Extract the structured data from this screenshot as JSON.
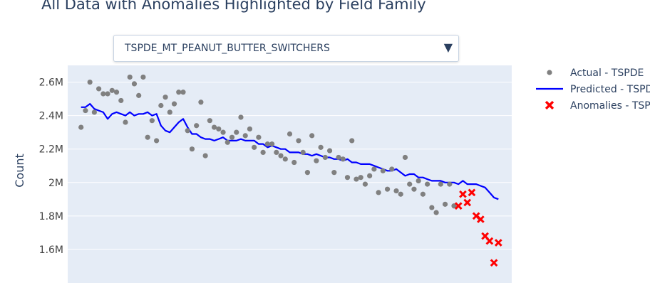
{
  "title": "All Data with Anomalies Highlighted by Field Family",
  "dropdown": {
    "selected": "TSPDE_MT_PEANUT_BUTTER_SWITCHERS",
    "arrow_icon": "triangle-down-icon"
  },
  "chart_data": {
    "type": "scatter",
    "ylabel": "Count",
    "ylim": [
      1400000,
      2700000
    ],
    "yticks": [
      {
        "value": 1600000,
        "label": "1.6M"
      },
      {
        "value": 1800000,
        "label": "1.8M"
      },
      {
        "value": 2000000,
        "label": "2M"
      },
      {
        "value": 2200000,
        "label": "2.2M"
      },
      {
        "value": 2400000,
        "label": "2.4M"
      },
      {
        "value": 2600000,
        "label": "2.6M"
      }
    ],
    "xlim": [
      -3,
      97
    ],
    "grid": true,
    "legend_position": "right",
    "series": [
      {
        "name": "Actual - TSPDE",
        "mode": "markers",
        "color": "#808080",
        "x": [
          0,
          1,
          2,
          3,
          4,
          5,
          6,
          7,
          8,
          9,
          10,
          11,
          12,
          13,
          14,
          15,
          16,
          17,
          18,
          19,
          20,
          21,
          22,
          23,
          24,
          25,
          26,
          27,
          28,
          29,
          30,
          31,
          32,
          33,
          34,
          35,
          36,
          37,
          38,
          39,
          40,
          41,
          42,
          43,
          44,
          45,
          46,
          47,
          48,
          49,
          50,
          51,
          52,
          53,
          54,
          55,
          56,
          57,
          58,
          59,
          60,
          61,
          62,
          63,
          64,
          65,
          66,
          67,
          68,
          69,
          70,
          71,
          72,
          73,
          74,
          75,
          76,
          77,
          78,
          79,
          80,
          81,
          82,
          83,
          84
        ],
        "y": [
          2330000,
          2430000,
          2600000,
          2420000,
          2560000,
          2530000,
          2530000,
          2550000,
          2540000,
          2490000,
          2360000,
          2630000,
          2590000,
          2520000,
          2630000,
          2270000,
          2370000,
          2250000,
          2460000,
          2510000,
          2420000,
          2470000,
          2540000,
          2540000,
          2310000,
          2200000,
          2340000,
          2480000,
          2160000,
          2370000,
          2330000,
          2320000,
          2300000,
          2240000,
          2270000,
          2300000,
          2390000,
          2280000,
          2320000,
          2210000,
          2270000,
          2180000,
          2230000,
          2230000,
          2180000,
          2160000,
          2140000,
          2290000,
          2120000,
          2250000,
          2180000,
          2060000,
          2280000,
          2130000,
          2210000,
          2150000,
          2190000,
          2060000,
          2150000,
          2140000,
          2030000,
          2250000,
          2020000,
          2030000,
          1990000,
          2040000,
          2080000,
          1940000,
          2070000,
          1960000,
          2080000,
          1950000,
          1930000,
          2150000,
          1990000,
          1960000,
          2010000,
          1930000,
          1990000,
          1850000,
          1820000,
          1990000,
          1870000,
          1990000,
          1860000
        ]
      },
      {
        "name": "Predicted - TSPDE",
        "mode": "lines",
        "color": "#0000ff",
        "x": [
          0,
          1,
          2,
          3,
          4,
          5,
          6,
          7,
          8,
          9,
          10,
          11,
          12,
          13,
          14,
          15,
          16,
          17,
          18,
          19,
          20,
          21,
          22,
          23,
          24,
          25,
          26,
          27,
          28,
          29,
          30,
          31,
          32,
          33,
          34,
          35,
          36,
          37,
          38,
          39,
          40,
          41,
          42,
          43,
          44,
          45,
          46,
          47,
          48,
          49,
          50,
          51,
          52,
          53,
          54,
          55,
          56,
          57,
          58,
          59,
          60,
          61,
          62,
          63,
          64,
          65,
          66,
          67,
          68,
          69,
          70,
          71,
          72,
          73,
          74,
          75,
          76,
          77,
          78,
          79,
          80,
          81,
          82,
          83,
          84,
          85,
          86,
          87,
          88,
          89,
          90,
          91,
          92,
          93,
          94
        ],
        "y": [
          2450000,
          2450000,
          2470000,
          2440000,
          2430000,
          2420000,
          2380000,
          2410000,
          2420000,
          2410000,
          2400000,
          2420000,
          2400000,
          2410000,
          2410000,
          2420000,
          2400000,
          2410000,
          2340000,
          2310000,
          2300000,
          2330000,
          2360000,
          2380000,
          2330000,
          2290000,
          2290000,
          2270000,
          2260000,
          2260000,
          2250000,
          2260000,
          2270000,
          2250000,
          2250000,
          2250000,
          2260000,
          2250000,
          2250000,
          2250000,
          2230000,
          2230000,
          2210000,
          2220000,
          2210000,
          2200000,
          2200000,
          2180000,
          2180000,
          2180000,
          2170000,
          2170000,
          2160000,
          2170000,
          2160000,
          2150000,
          2150000,
          2140000,
          2140000,
          2130000,
          2140000,
          2120000,
          2120000,
          2110000,
          2110000,
          2110000,
          2100000,
          2090000,
          2080000,
          2070000,
          2070000,
          2080000,
          2060000,
          2040000,
          2050000,
          2050000,
          2030000,
          2030000,
          2020000,
          2010000,
          2010000,
          2010000,
          2000000,
          2000000,
          2000000,
          1990000,
          2010000,
          1990000,
          1990000,
          1990000,
          1980000,
          1970000,
          1940000,
          1910000,
          1900000
        ]
      },
      {
        "name": "Anomalies - TSPDE",
        "mode": "markers",
        "marker": "x",
        "color": "#ff0000",
        "x": [
          85,
          86,
          87,
          88,
          89,
          90,
          91,
          92,
          93,
          94
        ],
        "y": [
          1860000,
          1930000,
          1880000,
          1940000,
          1800000,
          1780000,
          1680000,
          1650000,
          1520000,
          1640000
        ]
      }
    ]
  }
}
